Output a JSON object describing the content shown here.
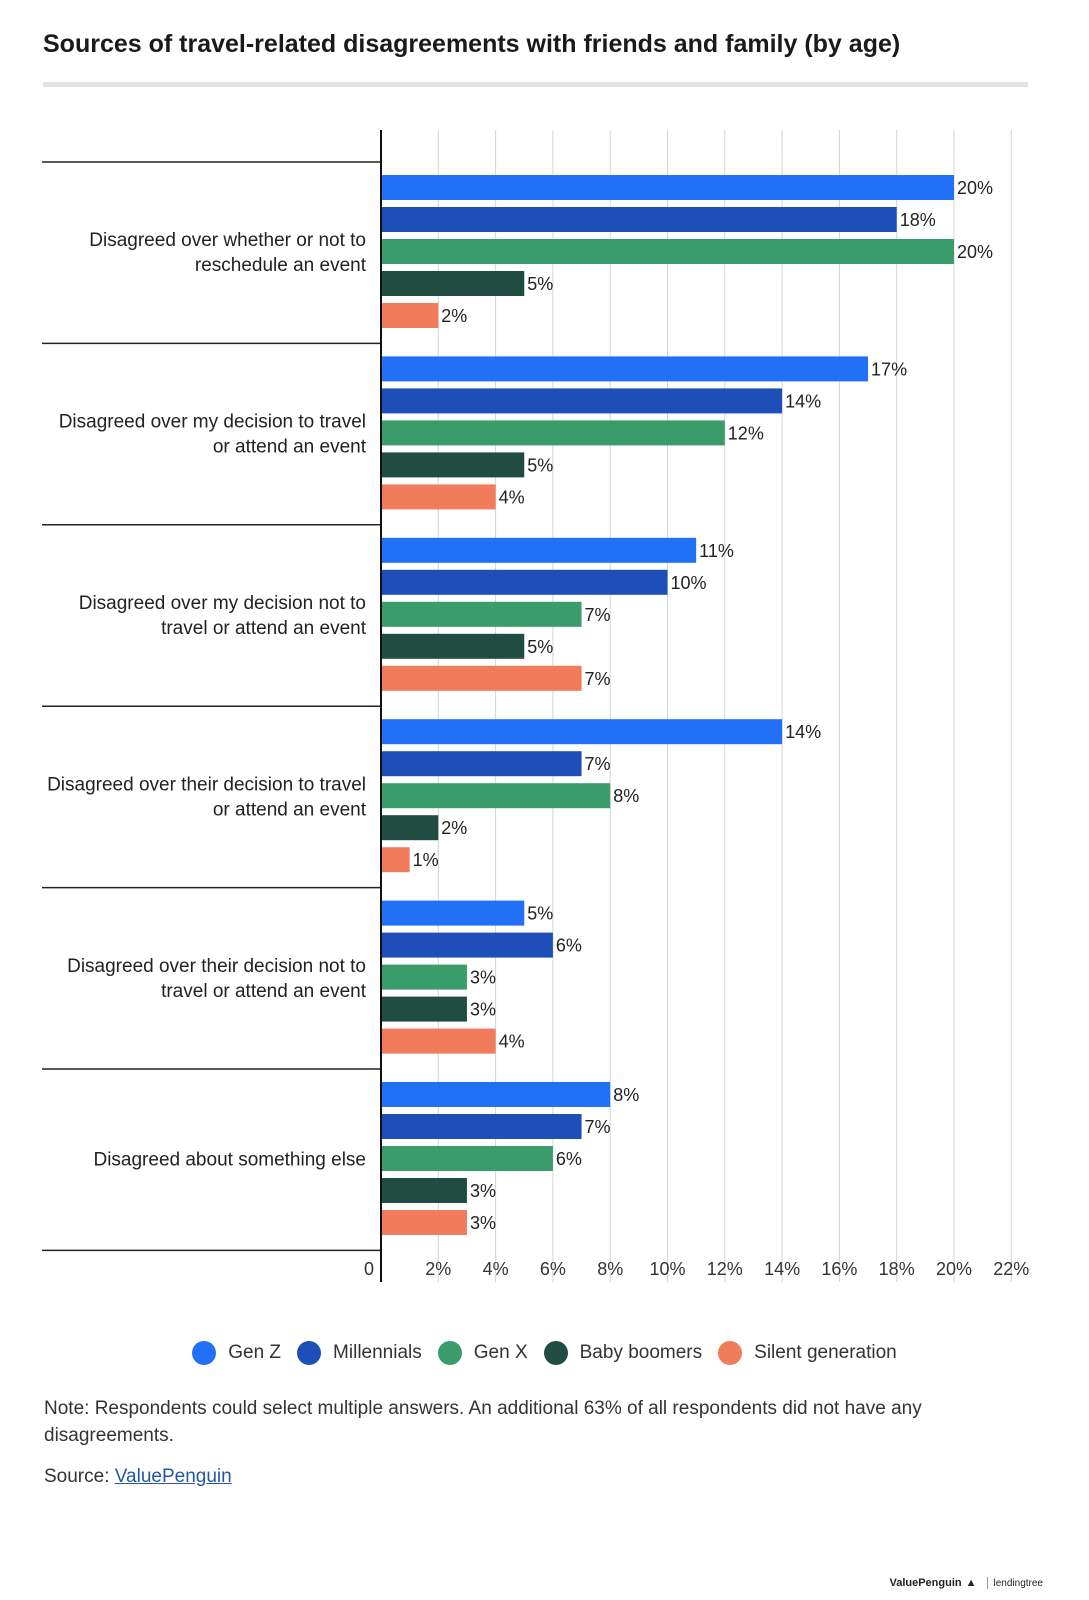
{
  "chart_data": {
    "type": "bar",
    "orientation": "horizontal",
    "title": "Sources of travel-related disagreements with friends and family (by age)",
    "categories": [
      [
        "Disagreed over whether or not to",
        "reschedule an event"
      ],
      [
        "Disagreed over my decision to travel",
        "or attend an event"
      ],
      [
        "Disagreed over my decision not to",
        "travel or attend an event"
      ],
      [
        "Disagreed over their decision to travel",
        "or attend an event"
      ],
      [
        "Disagreed over their decision not to",
        "travel or attend an event"
      ],
      [
        "Disagreed about something else"
      ]
    ],
    "series": [
      {
        "name": "Gen Z",
        "color": "#2170f5",
        "values": [
          20,
          17,
          11,
          14,
          5,
          8
        ]
      },
      {
        "name": "Millennials",
        "color": "#1e4fb8",
        "values": [
          18,
          14,
          10,
          7,
          6,
          7
        ]
      },
      {
        "name": "Gen X",
        "color": "#3a9c6a",
        "values": [
          20,
          12,
          7,
          8,
          3,
          6
        ]
      },
      {
        "name": "Baby boomers",
        "color": "#214c41",
        "values": [
          5,
          5,
          5,
          2,
          3,
          3
        ]
      },
      {
        "name": "Silent generation",
        "color": "#f17c5b",
        "values": [
          2,
          4,
          7,
          1,
          4,
          3
        ]
      }
    ],
    "value_suffix": "%",
    "xlim": [
      0,
      22
    ],
    "xticks": [
      0,
      2,
      4,
      6,
      8,
      10,
      12,
      14,
      16,
      18,
      20,
      22
    ],
    "xtick_labels": [
      "0",
      "2%",
      "4%",
      "6%",
      "8%",
      "10%",
      "12%",
      "14%",
      "16%",
      "18%",
      "20%",
      "22%"
    ],
    "grid": true,
    "legend": "bottom-center"
  },
  "note": "Note: Respondents could select multiple answers. An additional 63% of all respondents did not have any disagreements.",
  "source": {
    "prefix": "Source:",
    "link_label": "ValuePenguin"
  },
  "branding": {
    "left": "ValuePenguin",
    "right": "lendingtree"
  }
}
